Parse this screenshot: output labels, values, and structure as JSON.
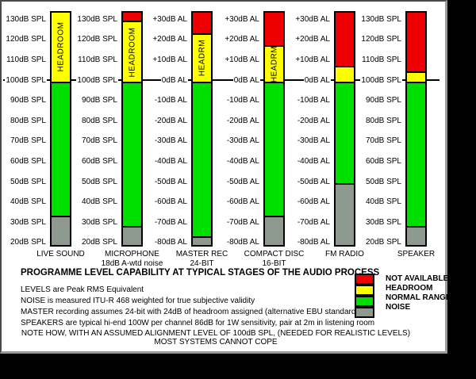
{
  "panel": {
    "title": "PROGRAMME LEVEL CAPABILITY AT TYPICAL STAGES OF THE AUDIO PROCESS",
    "notes": [
      "LEVELS are Peak RMS Equivalent",
      "NOISE is measured ITU-R 468 weighted for true subjective validity",
      "MASTER recording assumes 24-bit with 24dB of headroom assigned  (alternative EBU standard)",
      "SPEAKERS are typical hi-end 100W per channel 86dB for 1W sensitivity, pair at 2m in listening room"
    ],
    "footnote_lines": [
      "NOTE HOW, WITH AN ASSUMED ALIGNMENT LEVEL OF 100dB SPL, (NEEDED FOR REALISTIC LEVELS)",
      "MOST SYSTEMS CANNOT COPE"
    ]
  },
  "chart_data": {
    "type": "bar",
    "title": "PROGRAMME LEVEL CAPABILITY AT TYPICAL STAGES OF THE AUDIO PROCESS",
    "units": {
      "AL": "dB AL",
      "SPL": "dB SPL",
      "relation": "0dB AL = 100dB SPL (assumed alignment level)"
    },
    "axis": {
      "tick_top_al": 30,
      "tick_bottom_al": -80,
      "tick_step": 10,
      "bar_top_al": 34,
      "bar_bottom_al": -82,
      "grid": "off",
      "alignment_line_al": 0
    },
    "scale_labels": {
      "SPL": [
        "130dB SPL",
        "120dB SPL",
        "110dB SPL",
        "100dB SPL",
        "90dB SPL",
        "80dB SPL",
        "70dB SPL",
        "60dB SPL",
        "50dB SPL",
        "40dB SPL",
        "30dB SPL",
        "20dB SPL"
      ],
      "AL": [
        "+30dB AL",
        "+20dB AL",
        "+10dB AL",
        "0dB AL",
        "-10dB AL",
        "-20dB AL",
        "-30dB AL",
        "-40dB AL",
        "-50dB AL",
        "-60dB AL",
        "-70dB AL",
        "-80dB AL"
      ]
    },
    "colors": {
      "not_available": "#ee0000",
      "headroom": "#ffff00",
      "normal": "#00e000",
      "noise": "#8e9a8e"
    },
    "columns": [
      {
        "id": "live-sound",
        "label_lines": [
          "LIVE SOUND"
        ],
        "scale": "SPL",
        "segments": [
          {
            "type": "headroom",
            "top_al": 34,
            "bottom_al": 0,
            "text": "HEADROOM"
          },
          {
            "type": "normal",
            "top_al": 0,
            "bottom_al": -66
          },
          {
            "type": "noise",
            "top_al": -66,
            "bottom_al": -82
          }
        ]
      },
      {
        "id": "microphone",
        "label_lines": [
          "MICROPHONE",
          "18dB A-wtd noise"
        ],
        "scale": "SPL",
        "segments": [
          {
            "type": "not_available",
            "top_al": 34,
            "bottom_al": 30
          },
          {
            "type": "headroom",
            "top_al": 30,
            "bottom_al": 0,
            "text": "HEADROOM"
          },
          {
            "type": "normal",
            "top_al": 0,
            "bottom_al": -71
          },
          {
            "type": "noise",
            "top_al": -71,
            "bottom_al": -82
          }
        ]
      },
      {
        "id": "master-rec",
        "label_lines": [
          "MASTER REC",
          "24-BIT"
        ],
        "scale": "AL",
        "segments": [
          {
            "type": "not_available",
            "top_al": 34,
            "bottom_al": 24
          },
          {
            "type": "headroom",
            "top_al": 24,
            "bottom_al": 0,
            "text": "HEADRM"
          },
          {
            "type": "normal",
            "top_al": 0,
            "bottom_al": -76
          },
          {
            "type": "noise",
            "top_al": -76,
            "bottom_al": -82
          }
        ]
      },
      {
        "id": "compact-disc",
        "label_lines": [
          "COMPACT DISC",
          "16-BIT"
        ],
        "scale": "AL",
        "segments": [
          {
            "type": "not_available",
            "top_al": 34,
            "bottom_al": 18
          },
          {
            "type": "headroom",
            "top_al": 18,
            "bottom_al": 0,
            "text": "HEADRM"
          },
          {
            "type": "normal",
            "top_al": 0,
            "bottom_al": -66
          },
          {
            "type": "noise",
            "top_al": -66,
            "bottom_al": -82
          }
        ]
      },
      {
        "id": "fm-radio",
        "label_lines": [
          "FM RADIO"
        ],
        "scale": "AL",
        "segments": [
          {
            "type": "not_available",
            "top_al": 34,
            "bottom_al": 8
          },
          {
            "type": "headroom",
            "top_al": 8,
            "bottom_al": 0
          },
          {
            "type": "normal",
            "top_al": 0,
            "bottom_al": -50
          },
          {
            "type": "noise",
            "top_al": -50,
            "bottom_al": -82
          }
        ]
      },
      {
        "id": "speaker",
        "label_lines": [
          "SPEAKER"
        ],
        "scale": "SPL",
        "segments": [
          {
            "type": "not_available",
            "top_al": 34,
            "bottom_al": 5
          },
          {
            "type": "headroom",
            "top_al": 5,
            "bottom_al": 0
          },
          {
            "type": "normal",
            "top_al": 0,
            "bottom_al": -71
          },
          {
            "type": "noise",
            "top_al": -71,
            "bottom_al": -82
          }
        ]
      }
    ],
    "legend": {
      "position": "bottom-right",
      "items": [
        {
          "type": "not_available",
          "label": "NOT AVAILABLE",
          "color": "#ee0000"
        },
        {
          "type": "headroom",
          "label": "HEADROOM",
          "color": "#ffff00"
        },
        {
          "type": "normal",
          "label": "NORMAL RANGE",
          "color": "#00e000"
        },
        {
          "type": "noise",
          "label": "NOISE",
          "color": "#8e9a8e"
        }
      ]
    }
  }
}
